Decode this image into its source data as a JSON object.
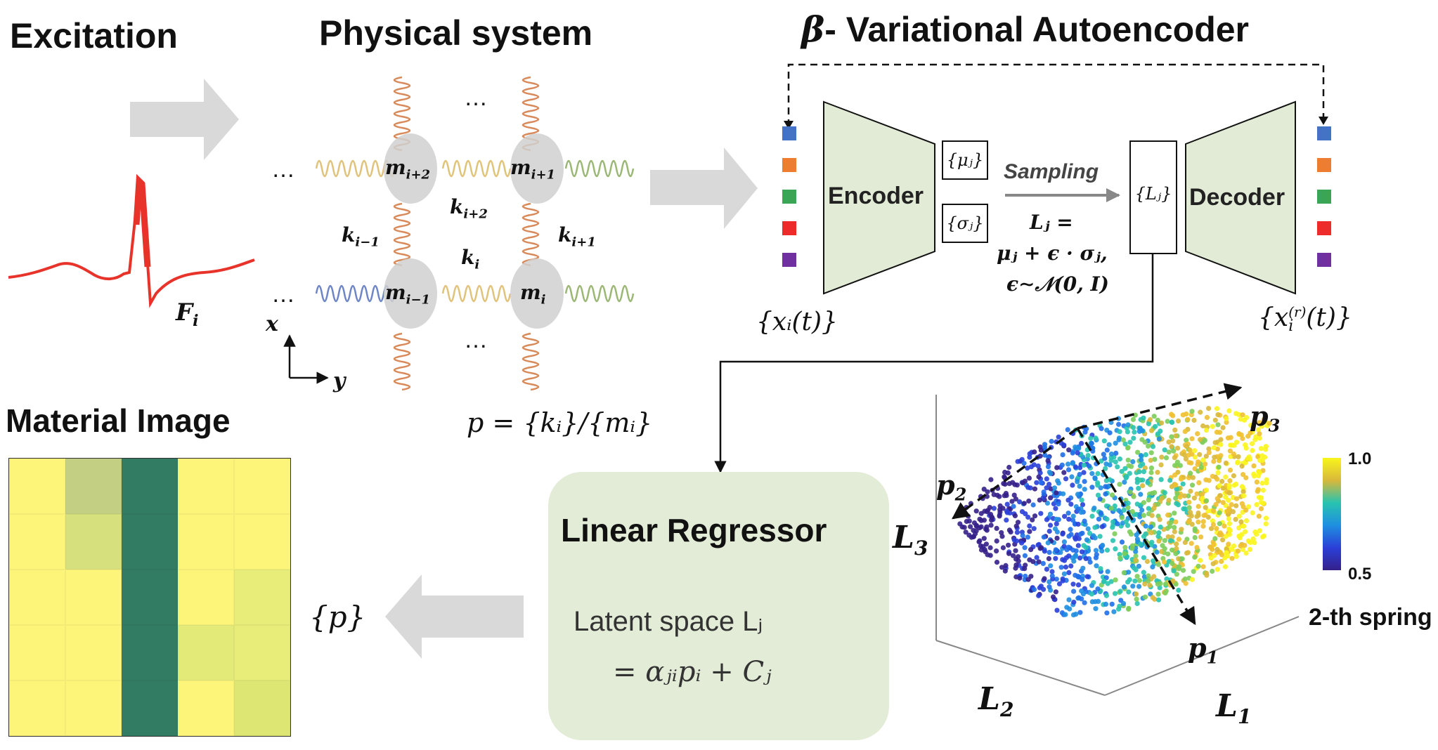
{
  "excitation": {
    "title": "Excitation",
    "force_label": "F",
    "force_sub": "i"
  },
  "physical": {
    "title": "Physical system",
    "ellipsis": "…",
    "masses": [
      {
        "sym": "m",
        "sub": "i+2"
      },
      {
        "sym": "m",
        "sub": "i+1"
      },
      {
        "sym": "m",
        "sub": "i−1"
      },
      {
        "sym": "m",
        "sub": "i"
      }
    ],
    "springs": [
      {
        "sym": "k",
        "sub": "i+2"
      },
      {
        "sym": "k",
        "sub": "i−1"
      },
      {
        "sym": "k",
        "sub": "i+1"
      },
      {
        "sym": "k",
        "sub": "i"
      }
    ],
    "axis_x": "x",
    "axis_y": "y",
    "param_formula": "p = {kᵢ}/{mᵢ}"
  },
  "vae": {
    "title_beta": "β",
    "title_rest": "- Variational Autoencoder",
    "encoder": "Encoder",
    "decoder": "Decoder",
    "mu": "{μⱼ}",
    "sigma": "{σⱼ}",
    "sampling": "Sampling",
    "latent": "{Lⱼ}",
    "eq_line1": "Lⱼ =",
    "eq_line2": "μⱼ + ϵ · σⱼ,",
    "eq_line3": "ϵ∼𝒩(0, I)",
    "input_label": "{xᵢ(t)}",
    "output_sym": "x",
    "output_sup": "(r)",
    "output_sub": "i",
    "output_arg": "(t)",
    "feature_colors": [
      "#4472c4",
      "#ed7d31",
      "#3aa655",
      "#ee2b2b",
      "#7030a0"
    ]
  },
  "material": {
    "title": "Material Image",
    "grid": [
      [
        "#fcf57a",
        "#c3d083",
        "#337c64",
        "#fcf57a",
        "#fcf57a"
      ],
      [
        "#fcf57a",
        "#d6e07d",
        "#337c64",
        "#fcf57a",
        "#fcf57a"
      ],
      [
        "#fcf57a",
        "#fcf57a",
        "#337c64",
        "#fcf57a",
        "#e8ec78"
      ],
      [
        "#fcf57a",
        "#fcf57a",
        "#337c64",
        "#e4ea78",
        "#e8ec78"
      ],
      [
        "#fcf57a",
        "#fcf57a",
        "#337c64",
        "#fcf57a",
        "#dde672"
      ]
    ]
  },
  "regressor": {
    "title": "Linear Regressor",
    "line1": "Latent space Lⱼ",
    "line2": "= αⱼᵢpᵢ + Cⱼ",
    "output": "{p}"
  },
  "latent_plot": {
    "axis_L1": "L",
    "axis_L1_sub": "1",
    "axis_L2": "L",
    "axis_L2_sub": "2",
    "axis_L3": "L",
    "axis_L3_sub": "3",
    "p1": "p",
    "p1_sub": "1",
    "p2": "p",
    "p2_sub": "2",
    "p3": "p",
    "p3_sub": "3",
    "colorbar_max": "1.0",
    "colorbar_min": "0.5",
    "colorbar_label": "2-th spring"
  }
}
